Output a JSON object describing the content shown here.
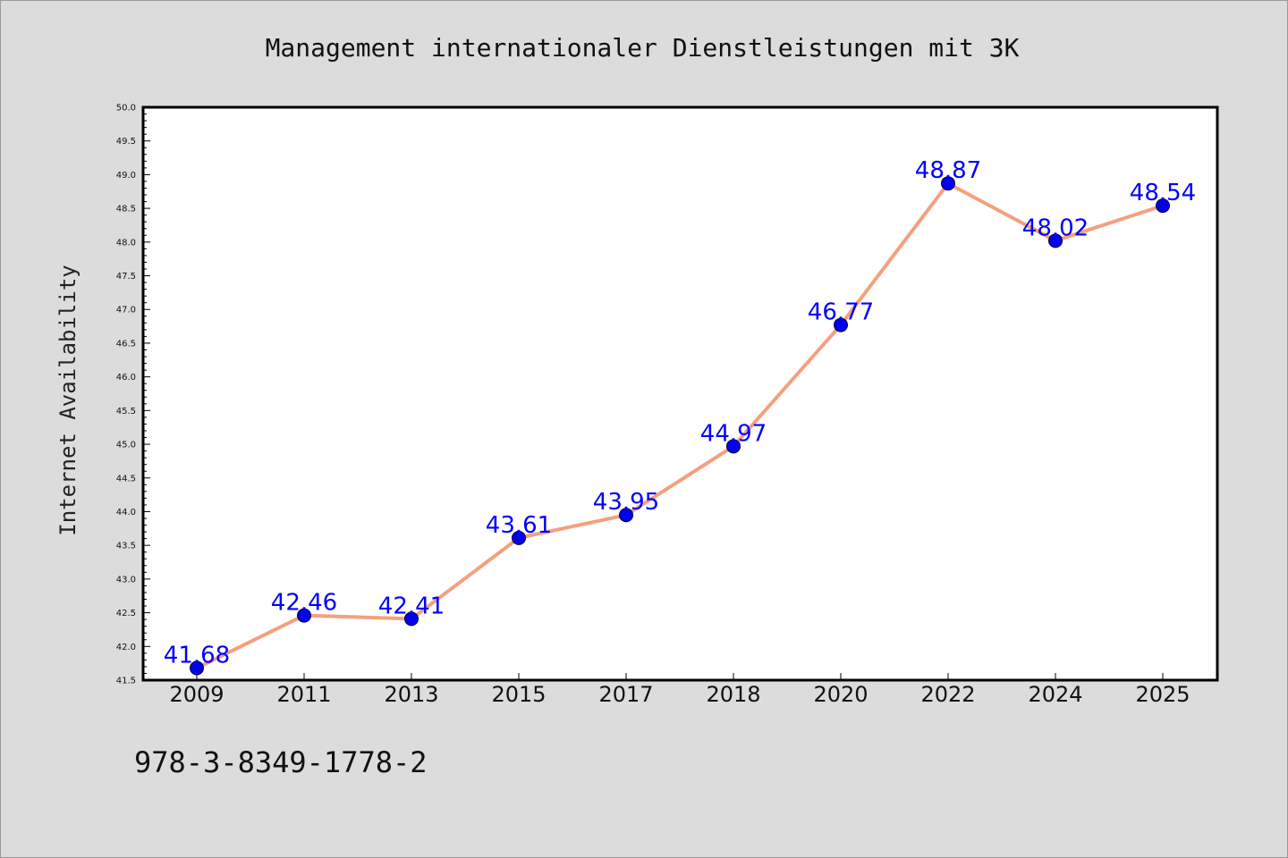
{
  "chart_data": {
    "type": "line",
    "title": "Management internationaler Dienstleistungen mit 3K",
    "ylabel": "Internet Availability",
    "xlabel": "",
    "categories": [
      "2009",
      "2011",
      "2013",
      "2015",
      "2017",
      "2018",
      "2020",
      "2022",
      "2024",
      "2025"
    ],
    "series": [
      {
        "values": [
          41.68,
          42.46,
          42.41,
          43.61,
          43.95,
          44.97,
          46.77,
          48.87,
          48.02,
          48.54
        ],
        "line_color": "#f4a07e",
        "marker_color": "#0000ee"
      }
    ],
    "data_labels": [
      "41.68",
      "42.46",
      "42.41",
      "43.61",
      "43.95",
      "44.97",
      "46.77",
      "48.87",
      "48.02",
      "48.54"
    ],
    "ylim": [
      41.5,
      50.0
    ],
    "yticks": [
      "41.5",
      "42.0",
      "42.5",
      "43.0",
      "43.5",
      "44.0",
      "44.5",
      "45.0",
      "45.5",
      "46.0",
      "46.5",
      "47.0",
      "47.5",
      "48.0",
      "48.5",
      "49.0",
      "49.5",
      "50.0"
    ],
    "grid": false,
    "legend": "none"
  },
  "footer": {
    "isbn": "978-3-8349-1778-2"
  },
  "colors": {
    "background": "#dcdcdc",
    "plot_background": "#ffffff",
    "line": "#f4a07e",
    "marker": "#0000ee",
    "data_label": "#0000ff"
  }
}
